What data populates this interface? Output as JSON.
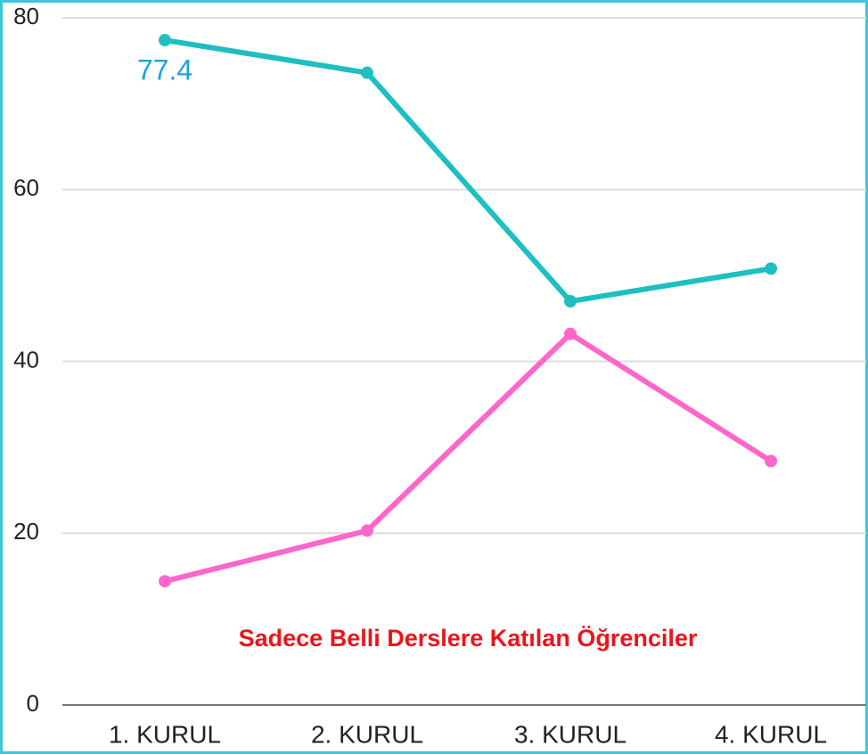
{
  "chart_data": {
    "type": "line",
    "categories": [
      "1. KURUL",
      "2. KURUL",
      "3. KURUL",
      "4. KURUL"
    ],
    "series": [
      {
        "color": "#1fbfc0",
        "values": [
          77.4,
          73.6,
          47.0,
          50.8
        ],
        "value_labels": [
          "77.4",
          null,
          null,
          null
        ],
        "label_color": "#1aa3e0"
      },
      {
        "color": "#ff66cc",
        "values": [
          14.4,
          20.3,
          43.2,
          28.4
        ]
      }
    ],
    "annotation": "Sadece Belli Derslere Katılan Öğrenciler",
    "annotation_color": "#e8161b",
    "ylim": [
      0,
      80
    ],
    "yticks": [
      0,
      20,
      40,
      60,
      80
    ],
    "grid": true
  }
}
